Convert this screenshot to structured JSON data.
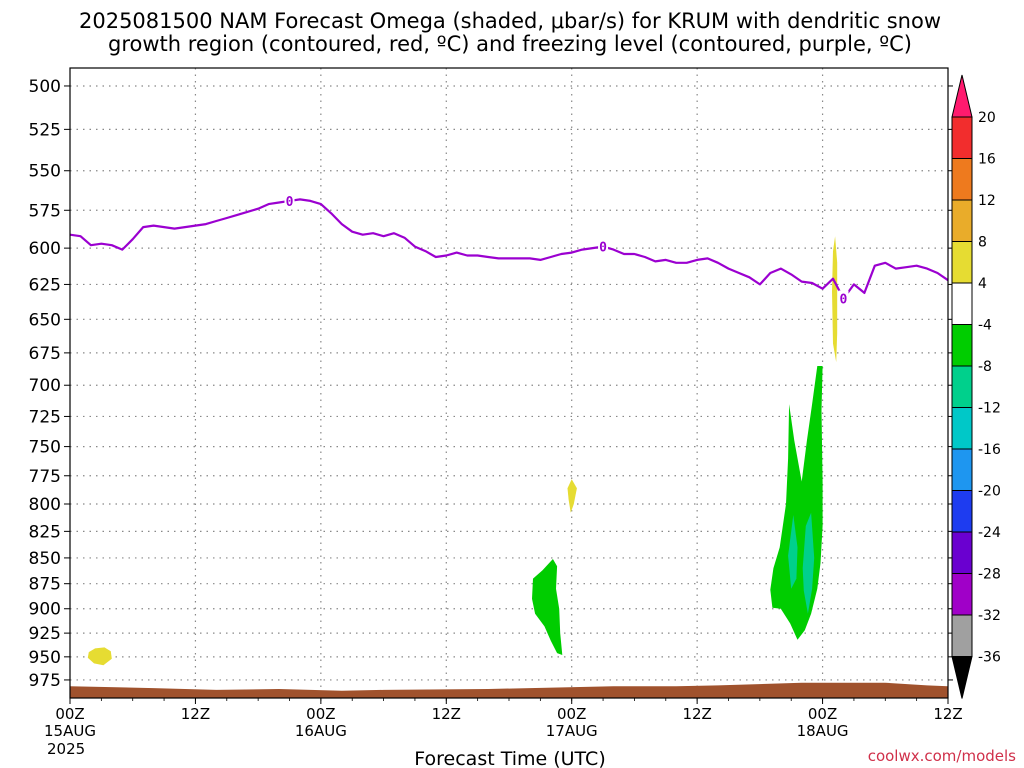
{
  "title": {
    "line1": "2025081500 NAM Forecast Omega (shaded, μbar/s) for KRUM with dendritic snow",
    "line2": "growth region (contoured, red, ºC) and freezing level (contoured, purple, ºC)"
  },
  "credit": "coolwx.com/models",
  "colors": {
    "freezing_level": "#9b00d0",
    "terrain": "#a0522d",
    "grid": "#888888"
  },
  "chart_data": {
    "type": "time-height contour",
    "xlabel": "Forecast Time (UTC)",
    "x_range_hours": [
      0,
      84
    ],
    "y_scale": "pressure (inverted, log)",
    "y_range_mb": [
      490,
      995
    ],
    "y_ticks": [
      500,
      525,
      550,
      575,
      600,
      625,
      650,
      675,
      700,
      725,
      750,
      775,
      800,
      825,
      850,
      875,
      900,
      925,
      950,
      975
    ],
    "grid": true,
    "x_ticks": [
      {
        "hour": 0,
        "label": "00Z",
        "sub": "15AUG",
        "sub2": "2025"
      },
      {
        "hour": 12,
        "label": "12Z",
        "sub": "",
        "sub2": ""
      },
      {
        "hour": 24,
        "label": "00Z",
        "sub": "16AUG",
        "sub2": ""
      },
      {
        "hour": 36,
        "label": "12Z",
        "sub": "",
        "sub2": ""
      },
      {
        "hour": 48,
        "label": "00Z",
        "sub": "17AUG",
        "sub2": ""
      },
      {
        "hour": 60,
        "label": "12Z",
        "sub": "",
        "sub2": ""
      },
      {
        "hour": 72,
        "label": "00Z",
        "sub": "18AUG",
        "sub2": ""
      },
      {
        "hour": 84,
        "label": "12Z",
        "sub": "",
        "sub2": ""
      }
    ],
    "freezing_level": {
      "label": "0",
      "label_hours": [
        21,
        51,
        74
      ],
      "points": [
        [
          0,
          591
        ],
        [
          1,
          592
        ],
        [
          2,
          598
        ],
        [
          3,
          597
        ],
        [
          4,
          598
        ],
        [
          5,
          601
        ],
        [
          6,
          594
        ],
        [
          7,
          586
        ],
        [
          8,
          585
        ],
        [
          9,
          586
        ],
        [
          10,
          587
        ],
        [
          11,
          586
        ],
        [
          12,
          585
        ],
        [
          13,
          584
        ],
        [
          14,
          582
        ],
        [
          15,
          580
        ],
        [
          16,
          578
        ],
        [
          17,
          576
        ],
        [
          18,
          574
        ],
        [
          19,
          571
        ],
        [
          20,
          570
        ],
        [
          21,
          569
        ],
        [
          22,
          568
        ],
        [
          23,
          569
        ],
        [
          24,
          571
        ],
        [
          25,
          577
        ],
        [
          26,
          584
        ],
        [
          27,
          589
        ],
        [
          28,
          591
        ],
        [
          29,
          590
        ],
        [
          30,
          592
        ],
        [
          31,
          590
        ],
        [
          32,
          593
        ],
        [
          33,
          599
        ],
        [
          34,
          602
        ],
        [
          35,
          606
        ],
        [
          36,
          605
        ],
        [
          37,
          603
        ],
        [
          38,
          605
        ],
        [
          39,
          605
        ],
        [
          40,
          606
        ],
        [
          41,
          607
        ],
        [
          42,
          607
        ],
        [
          43,
          607
        ],
        [
          44,
          607
        ],
        [
          45,
          608
        ],
        [
          46,
          606
        ],
        [
          47,
          604
        ],
        [
          48,
          603
        ],
        [
          49,
          601
        ],
        [
          50,
          600
        ],
        [
          51,
          599
        ],
        [
          52,
          601
        ],
        [
          53,
          604
        ],
        [
          54,
          604
        ],
        [
          55,
          606
        ],
        [
          56,
          609
        ],
        [
          57,
          608
        ],
        [
          58,
          610
        ],
        [
          59,
          610
        ],
        [
          60,
          608
        ],
        [
          61,
          607
        ],
        [
          62,
          610
        ],
        [
          63,
          614
        ],
        [
          64,
          617
        ],
        [
          65,
          620
        ],
        [
          66,
          625
        ],
        [
          67,
          617
        ],
        [
          68,
          614
        ],
        [
          69,
          618
        ],
        [
          70,
          623
        ],
        [
          71,
          624
        ],
        [
          72,
          628
        ],
        [
          73,
          621
        ],
        [
          74,
          635
        ],
        [
          75,
          625
        ],
        [
          76,
          631
        ],
        [
          77,
          612
        ],
        [
          78,
          610
        ],
        [
          79,
          614
        ],
        [
          80,
          613
        ],
        [
          81,
          612
        ],
        [
          82,
          614
        ],
        [
          83,
          617
        ],
        [
          84,
          622
        ]
      ]
    },
    "terrain_top_mb": [
      [
        0,
        982
      ],
      [
        8,
        984
      ],
      [
        14,
        986
      ],
      [
        20,
        985
      ],
      [
        26,
        987
      ],
      [
        30,
        986
      ],
      [
        40,
        985
      ],
      [
        44,
        984
      ],
      [
        52,
        982
      ],
      [
        58,
        982
      ],
      [
        62,
        981
      ],
      [
        70,
        978
      ],
      [
        78,
        978
      ],
      [
        82,
        981
      ],
      [
        84,
        982
      ]
    ],
    "omega_features": [
      {
        "value_range": "4 to 8",
        "color": "#e6dc32",
        "outline": [
          [
            1.8,
            945
          ],
          [
            2.4,
            941
          ],
          [
            3.3,
            940
          ],
          [
            3.9,
            944
          ],
          [
            4.0,
            952
          ],
          [
            3.2,
            959
          ],
          [
            2.3,
            957
          ],
          [
            1.7,
            951
          ]
        ]
      },
      {
        "value_range": "4 to 8",
        "color": "#e6dc32",
        "outline": [
          [
            47.6,
            786
          ],
          [
            48.0,
            778
          ],
          [
            48.5,
            786
          ],
          [
            48.2,
            800
          ],
          [
            47.9,
            808
          ],
          [
            47.7,
            796
          ]
        ]
      },
      {
        "value_range": "4 to 8",
        "color": "#e6dc32",
        "outline": [
          [
            73.0,
            602
          ],
          [
            73.2,
            592
          ],
          [
            73.4,
            610
          ],
          [
            73.4,
            660
          ],
          [
            73.3,
            682
          ],
          [
            73.0,
            668
          ],
          [
            72.9,
            630
          ]
        ]
      },
      {
        "value_range": "-8 to -4",
        "color": "#00cd00",
        "outline": [
          [
            44.3,
            870
          ],
          [
            45.2,
            862
          ],
          [
            46.2,
            851
          ],
          [
            46.6,
            858
          ],
          [
            46.5,
            880
          ],
          [
            46.8,
            900
          ],
          [
            46.9,
            925
          ],
          [
            47.1,
            948
          ],
          [
            46.6,
            946
          ],
          [
            46.0,
            933
          ],
          [
            45.4,
            918
          ],
          [
            44.5,
            905
          ],
          [
            44.2,
            890
          ]
        ]
      },
      {
        "value_range": "-8 to -4",
        "color": "#00cd00",
        "outline": [
          [
            67.0,
            881
          ],
          [
            67.3,
            860
          ],
          [
            67.9,
            840
          ],
          [
            68.5,
            800
          ],
          [
            68.7,
            760
          ],
          [
            68.8,
            715
          ],
          [
            69.3,
            745
          ],
          [
            70.0,
            780
          ],
          [
            70.5,
            745
          ],
          [
            71.0,
            715
          ],
          [
            71.5,
            685
          ],
          [
            72.0,
            685
          ],
          [
            71.9,
            720
          ],
          [
            72.0,
            780
          ],
          [
            72.0,
            820
          ],
          [
            71.8,
            855
          ],
          [
            71.5,
            880
          ],
          [
            70.9,
            905
          ],
          [
            70.3,
            922
          ],
          [
            69.6,
            932
          ],
          [
            68.9,
            915
          ],
          [
            68.0,
            900
          ],
          [
            67.2,
            899
          ]
        ]
      },
      {
        "value_range": "-12 to -8",
        "color": "#00d08c",
        "outline": [
          [
            68.7,
            848
          ],
          [
            69.2,
            810
          ],
          [
            69.6,
            840
          ],
          [
            69.5,
            870
          ],
          [
            69.0,
            880
          ]
        ]
      },
      {
        "value_range": "-12 to -8",
        "color": "#00d08c",
        "outline": [
          [
            70.1,
            860
          ],
          [
            70.4,
            820
          ],
          [
            70.9,
            808
          ],
          [
            71.2,
            850
          ],
          [
            71.0,
            880
          ],
          [
            70.6,
            905
          ],
          [
            70.2,
            882
          ]
        ]
      }
    ],
    "colorbar": {
      "labels": [
        "20",
        "16",
        "12",
        "8",
        "4",
        "-4",
        "-8",
        "-12",
        "-16",
        "-20",
        "-24",
        "-28",
        "-32",
        "-36"
      ],
      "colors": [
        "#ff1a6e",
        "#f22d2d",
        "#ee7a1e",
        "#e9ac2a",
        "#e6dc32",
        "#ffffff",
        "#00cd00",
        "#00d08c",
        "#00c8c8",
        "#1e96f0",
        "#1e3cf0",
        "#6a00d0",
        "#a000c8",
        "#a0a0a0",
        "#000000"
      ]
    }
  }
}
